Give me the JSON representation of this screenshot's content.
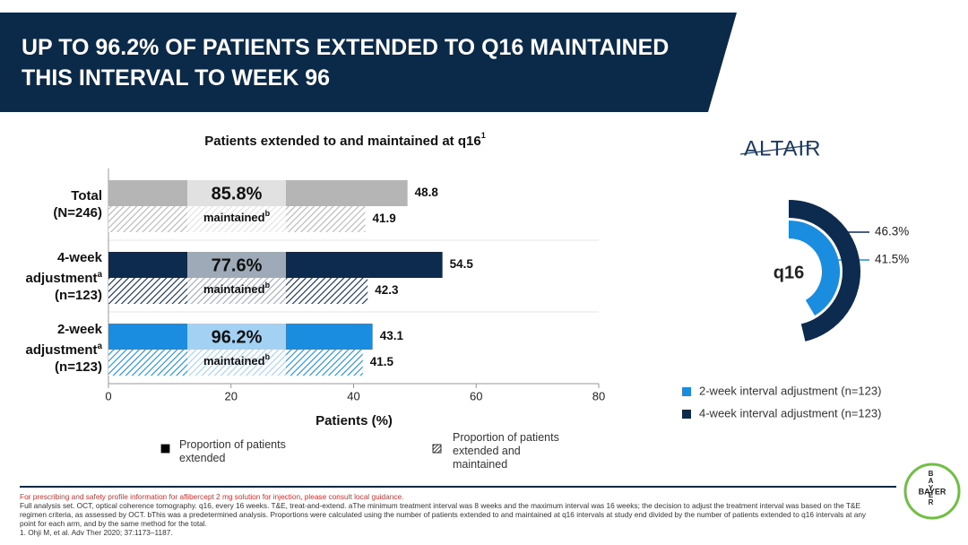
{
  "header": {
    "title": "UP TO 96.2% OF PATIENTS EXTENDED TO Q16 MAINTAINED THIS INTERVAL TO WEEK 96"
  },
  "logo": {
    "altair": "ALTAIR",
    "bayer": "BAYER"
  },
  "chart_data": [
    {
      "type": "bar",
      "orientation": "horizontal",
      "title": "Patients extended to and maintained at q16",
      "title_note": "1",
      "categories": [
        "Total",
        "4-week adjustment",
        "2-week adjustment"
      ],
      "category_notes": [
        null,
        "a",
        "a"
      ],
      "category_n": [
        "(N=246)",
        "(n=123)",
        "(n=123)"
      ],
      "category_colors": [
        "#b5b5b5",
        "#0d2b4e",
        "#1a8de0"
      ],
      "series": [
        {
          "name": "Proportion of patients extended",
          "color": "#000000",
          "pattern": "solid",
          "values": [
            48.8,
            54.5,
            43.1
          ]
        },
        {
          "name": "Proportion of patients extended and maintained",
          "color": "#000000",
          "pattern": "hatch",
          "values": [
            41.9,
            42.3,
            41.5
          ]
        }
      ],
      "maintained_pct": {
        "values": [
          85.8,
          77.6,
          96.2
        ],
        "value_labels": [
          "85.8%",
          "77.6%",
          "96.2%"
        ]
      },
      "maintained_label": "maintained",
      "maintained_note": "b",
      "xlabel": "Patients (%)",
      "xlim": [
        0,
        80
      ],
      "xticks": [
        0,
        20,
        40,
        60,
        80
      ]
    },
    {
      "type": "radial",
      "title": "q16",
      "rlim": [
        0,
        50
      ],
      "series": [
        {
          "name": "2-week interval adjustment (n=123)",
          "color": "#1a8de0",
          "values": [
            41.5
          ],
          "value_labels": [
            "41.5%"
          ]
        },
        {
          "name": "4-week interval adjustment (n=123)",
          "color": "#0d2b4e",
          "values": [
            46.3
          ],
          "value_labels": [
            "46.3%"
          ]
        }
      ]
    }
  ],
  "footnotes": {
    "warning": "For prescribing and safety profile information for aflibercept 2 mg solution for injection, please consult local guidance.",
    "text": "Full analysis set. OCT, optical coherence tomography. q16, every 16 weeks. T&E, treat-and-extend. aThe minimum treatment interval was 8 weeks and the maximum interval was 16 weeks; the decision to adjust the treatment interval was based on the T&E regimen criteria, as assessed by OCT. bThis was a predetermined analysis. Proportions were calculated using the number of patients extended to and maintained at q16 intervals at study end divided by the number of patients extended to q16 intervals at any point for each arm, and by the same method for the total.",
    "reference": "1. Ohji M, et al. Adv Ther 2020; 37:1173–1187."
  }
}
